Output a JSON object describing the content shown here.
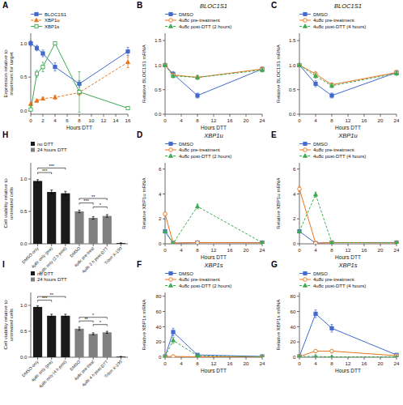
{
  "chart_data": [
    {
      "type": "line",
      "xlabel": "Hours DTT",
      "ylabel": "Expression relative to\nmaximum for target",
      "xlim": [
        0,
        16
      ],
      "ylim": [
        -0.05,
        1.15
      ],
      "xticks": [
        0,
        2,
        4,
        6,
        8,
        10,
        12,
        14,
        16
      ],
      "yticks": [
        {
          "value": 0.0,
          "label": "0.0"
        },
        0.5,
        {
          "value": 1.0,
          "label": "1.0"
        }
      ],
      "x": [
        0,
        1,
        2,
        4,
        8,
        16
      ],
      "series": [
        {
          "name": "BLOC1S1",
          "marker": "square",
          "line_style": "solid",
          "values": [
            1.0,
            0.93,
            0.85,
            0.65,
            0.4,
            0.88
          ],
          "errors": [
            0.04,
            0.04,
            0.05,
            0.06,
            0.05,
            0.06
          ]
        },
        {
          "name": "XBP1u",
          "marker": "triangle",
          "line_style": "dashed",
          "values": [
            0.1,
            0.15,
            0.18,
            0.2,
            0.27,
            0.72
          ],
          "errors": [
            0.02,
            0.02,
            0.02,
            0.03,
            0.04,
            0.08
          ]
        },
        {
          "name": "XBP1s",
          "marker": "open-square",
          "line_style": "solid",
          "values": [
            0.02,
            0.55,
            0.65,
            1.0,
            0.28,
            0.04
          ],
          "errors": [
            0.01,
            0.05,
            0.07,
            0.0,
            0.3,
            0.02
          ]
        }
      ],
      "legend": "top",
      "annotations": [
        {
          "text": "A"
        }
      ]
    },
    {
      "type": "line",
      "title": "BLOC1S1",
      "xlabel": "Hours DTT",
      "ylabel": "Relative BLOC1S1 mRNA",
      "xlim": [
        0,
        24
      ],
      "ylim": [
        0.0,
        1.65
      ],
      "xticks": [
        0,
        4,
        8,
        12,
        16,
        20,
        24
      ],
      "yticks": [
        {
          "value": 0.0,
          "label": "0.0"
        },
        0.5,
        {
          "value": 1.0,
          "label": "1.0"
        },
        1.5
      ],
      "x": [
        0,
        2,
        8,
        24
      ],
      "series": [
        {
          "name": "DMSO",
          "marker": "square",
          "line_style": "solid",
          "values": [
            1.0,
            0.82,
            0.38,
            0.92
          ],
          "errors": [
            0.0,
            0.05,
            0.05,
            0.04
          ]
        },
        {
          "name": "4u8c pre-treatment",
          "marker": "open-circle",
          "line_style": "solid",
          "values": [
            1.0,
            0.8,
            0.75,
            0.92
          ],
          "errors": [
            0.0,
            0.03,
            0.04,
            0.04
          ]
        },
        {
          "name": "4u8c post-DTT (2 hours)",
          "marker": "triangle",
          "line_style": "dashed",
          "values": [
            1.0,
            0.78,
            0.75,
            0.9
          ],
          "errors": [
            0.0,
            0.04,
            0.04,
            0.04
          ]
        }
      ],
      "legend": "top",
      "annotations": [
        {
          "text": "B"
        }
      ]
    },
    {
      "type": "line",
      "title": "BLOC1S1",
      "xlabel": "Hours DTT",
      "ylabel": "Relative BLOC1S1 mRNA",
      "xlim": [
        0,
        24
      ],
      "ylim": [
        0.0,
        1.65
      ],
      "xticks": [
        0,
        4,
        8,
        12,
        16,
        20,
        24
      ],
      "yticks": [
        {
          "value": 0.0,
          "label": "0.0"
        },
        0.5,
        {
          "value": 1.0,
          "label": "1.0"
        },
        1.5
      ],
      "x": [
        0,
        4,
        8,
        24
      ],
      "series": [
        {
          "name": "DMSO",
          "marker": "square",
          "line_style": "solid",
          "values": [
            1.0,
            0.62,
            0.38,
            0.85
          ],
          "errors": [
            0.0,
            0.06,
            0.05,
            0.04
          ]
        },
        {
          "name": "4u8c pre-treatment",
          "marker": "open-circle",
          "line_style": "solid",
          "values": [
            1.0,
            0.82,
            0.6,
            0.85
          ],
          "errors": [
            0.0,
            0.05,
            0.04,
            0.04
          ]
        },
        {
          "name": "4u8c post-DTT (4 hours)",
          "marker": "triangle",
          "line_style": "dashed",
          "values": [
            1.0,
            0.78,
            0.58,
            0.83
          ],
          "errors": [
            0.0,
            0.05,
            0.04,
            0.04
          ]
        }
      ],
      "legend": "top",
      "annotations": [
        {
          "text": "C"
        }
      ]
    },
    {
      "type": "bar",
      "ylabel": "Cell viability relative to\nuntreated cells",
      "ylim": [
        0,
        1.25
      ],
      "yticks": [
        {
          "value": 0.0,
          "label": "0.0"
        },
        0.5,
        {
          "value": 1.0,
          "label": "1.0"
        }
      ],
      "categories": [
        "DMSO only",
        "4μ8c only (pre)",
        "4μ8c only (2 h post)",
        "DMSO",
        "4μ8c pre-treat",
        "4μ8c 2 h post-DTT",
        "Triton X-100"
      ],
      "series": [
        {
          "name": "no DTT",
          "color": "#1a1a1a",
          "values": [
            0.97,
            0.8,
            0.78,
            null,
            null,
            null,
            0.01
          ],
          "errors": [
            0.02,
            0.03,
            0.03,
            null,
            null,
            null,
            0.005
          ]
        },
        {
          "name": "24 hours DTT",
          "color": "#808080",
          "values": [
            null,
            null,
            null,
            0.5,
            0.4,
            0.43,
            null
          ],
          "errors": [
            null,
            null,
            null,
            0.02,
            0.02,
            0.02,
            null
          ]
        }
      ],
      "legend": "top",
      "annotations": [
        {
          "text": "H"
        },
        {
          "x1": 0,
          "x2": 1,
          "y": 1.1,
          "text": "***"
        },
        {
          "x1": 0,
          "x2": 2,
          "y": 1.17,
          "text": "***"
        },
        {
          "x1": 3,
          "x2": 4,
          "y": 0.63,
          "text": "***"
        },
        {
          "x1": 3,
          "x2": 5,
          "y": 0.7,
          "text": "**"
        },
        {
          "x1": 4,
          "x2": 5,
          "y": 0.57,
          "text": "*"
        }
      ]
    },
    {
      "type": "line",
      "title": "XBP1u",
      "xlabel": "Hours DTT",
      "ylabel": "Relative XBP1u mRNA",
      "xlim": [
        0,
        24
      ],
      "ylim": [
        0,
        6.5
      ],
      "xticks": [
        0,
        4,
        8,
        12,
        16,
        20,
        24
      ],
      "yticks": [
        0,
        2,
        4,
        6
      ],
      "x": [
        0,
        2,
        8,
        24
      ],
      "series": [
        {
          "name": "DMSO",
          "marker": "square",
          "line_style": "solid",
          "values": [
            1.0,
            0.05,
            0.1,
            0.1
          ],
          "errors": [
            0.0,
            0.02,
            0.02,
            0.02
          ]
        },
        {
          "name": "4u8c pre-treatment",
          "marker": "open-circle",
          "line_style": "solid",
          "values": [
            2.4,
            0.05,
            0.1,
            0.08
          ],
          "errors": [
            0.12,
            0.02,
            0.02,
            0.02
          ]
        },
        {
          "name": "4u8c post-DTT (2 hours)",
          "marker": "triangle",
          "line_style": "dashed",
          "values": [
            1.0,
            0.05,
            3.0,
            0.1
          ],
          "errors": [
            0.0,
            0.02,
            0.2,
            0.02
          ]
        }
      ],
      "legend": "top",
      "annotations": [
        {
          "text": "D"
        }
      ]
    },
    {
      "type": "line",
      "title": "XBP1u",
      "xlabel": "Hours DTT",
      "ylabel": "Relative XBP1u mRNA",
      "xlim": [
        0,
        24
      ],
      "ylim": [
        0,
        6.5
      ],
      "xticks": [
        0,
        4,
        8,
        12,
        16,
        20,
        24
      ],
      "yticks": [
        0,
        2,
        4,
        6
      ],
      "x": [
        0,
        4,
        8,
        24
      ],
      "series": [
        {
          "name": "DMSO",
          "marker": "square",
          "line_style": "solid",
          "values": [
            1.0,
            0.05,
            0.1,
            0.1
          ],
          "errors": [
            0.0,
            0.02,
            0.02,
            0.02
          ]
        },
        {
          "name": "4u8c pre-treatment",
          "marker": "open-circle",
          "line_style": "solid",
          "values": [
            4.4,
            0.05,
            0.1,
            0.08
          ],
          "errors": [
            0.2,
            0.02,
            0.02,
            0.02
          ]
        },
        {
          "name": "4u8c post-DTT (4 hours)",
          "marker": "triangle",
          "line_style": "dashed",
          "values": [
            1.0,
            3.95,
            0.1,
            0.1
          ],
          "errors": [
            0.0,
            0.2,
            0.05,
            0.02
          ]
        }
      ],
      "legend": "top",
      "annotations": [
        {
          "text": "E"
        }
      ]
    },
    {
      "type": "bar",
      "ylabel": "Cell viability relative to\nuntreated cells",
      "ylim": [
        0,
        1.25
      ],
      "yticks": [
        {
          "value": 0.0,
          "label": "0.0"
        },
        0.5,
        {
          "value": 1.0,
          "label": "1.0"
        }
      ],
      "categories": [
        "DMSO only",
        "4μ8c only (pre)",
        "4μ8c only (4 h post)",
        "DMSO",
        "4μ8c pre-treat",
        "4μ8c 4 h post-DTT",
        "Triton X-100"
      ],
      "series": [
        {
          "name": "no DTT",
          "color": "#1a1a1a",
          "values": [
            0.97,
            0.8,
            0.8,
            null,
            null,
            null,
            0.01
          ],
          "errors": [
            0.02,
            0.03,
            0.03,
            null,
            null,
            null,
            0.005
          ]
        },
        {
          "name": "24 hours DTT",
          "color": "#808080",
          "values": [
            null,
            null,
            null,
            0.55,
            0.45,
            0.48,
            null
          ],
          "errors": [
            null,
            null,
            null,
            0.03,
            0.02,
            0.02,
            null
          ]
        }
      ],
      "legend": "top",
      "annotations": [
        {
          "text": "I"
        },
        {
          "x1": 0,
          "x2": 1,
          "y": 1.1,
          "text": "***"
        },
        {
          "x1": 0,
          "x2": 2,
          "y": 1.17,
          "text": "**"
        },
        {
          "x1": 3,
          "x2": 4,
          "y": 0.7,
          "text": "**"
        },
        {
          "x1": 3,
          "x2": 5,
          "y": 0.77,
          "text": "*"
        },
        {
          "x1": 4,
          "x2": 5,
          "y": 0.63,
          "text": "*"
        }
      ]
    },
    {
      "type": "line",
      "title": "XBP1s",
      "xlabel": "Hours DTT",
      "ylabel": "Relative XBP1s mRNA",
      "xlim": [
        0,
        24
      ],
      "ylim": [
        0,
        85
      ],
      "xticks": [
        0,
        4,
        8,
        12,
        16,
        20,
        24
      ],
      "yticks": [
        0,
        20,
        40,
        60,
        80
      ],
      "x": [
        0,
        2,
        8,
        24
      ],
      "series": [
        {
          "name": "DMSO",
          "marker": "square",
          "line_style": "solid",
          "values": [
            1.0,
            33.0,
            3.0,
            1.0
          ],
          "errors": [
            0.0,
            5.0,
            1.5,
            0.3
          ]
        },
        {
          "name": "4u8c pre-treatment",
          "marker": "open-circle",
          "line_style": "solid",
          "values": [
            1.0,
            1.0,
            0.5,
            0.5
          ],
          "errors": [
            0.0,
            0.3,
            0.2,
            0.2
          ]
        },
        {
          "name": "4u8c post-DTT (2 hours)",
          "marker": "triangle",
          "line_style": "dashed",
          "values": [
            1.0,
            22.0,
            2.0,
            0.5
          ],
          "errors": [
            0.0,
            4.0,
            0.8,
            0.2
          ]
        }
      ],
      "legend": "top",
      "annotations": [
        {
          "text": "F"
        }
      ]
    },
    {
      "type": "line",
      "title": "XBP1s",
      "xlabel": "Hours DTT",
      "ylabel": "Relative XBP1s mRNA",
      "xlim": [
        0,
        24
      ],
      "ylim": [
        0,
        85
      ],
      "xticks": [
        0,
        4,
        8,
        12,
        16,
        20,
        24
      ],
      "yticks": [
        0,
        20,
        40,
        60,
        80
      ],
      "x": [
        0,
        4,
        8,
        24
      ],
      "series": [
        {
          "name": "DMSO",
          "marker": "square",
          "line_style": "solid",
          "values": [
            1.0,
            57.0,
            38.0,
            3.0
          ],
          "errors": [
            0.0,
            5.0,
            5.0,
            1.0
          ]
        },
        {
          "name": "4u8c pre-treatment",
          "marker": "open-circle",
          "line_style": "solid",
          "values": [
            1.0,
            8.0,
            8.0,
            2.0
          ],
          "errors": [
            0.0,
            1.5,
            1.5,
            0.5
          ]
        },
        {
          "name": "4u8c post-DTT (4 hours)",
          "marker": "triangle",
          "line_style": "dashed",
          "values": [
            1.0,
            1.0,
            0.5,
            0.5
          ],
          "errors": [
            0.0,
            0.3,
            0.2,
            0.2
          ]
        }
      ],
      "legend": "top",
      "annotations": [
        {
          "text": "G"
        }
      ]
    }
  ]
}
